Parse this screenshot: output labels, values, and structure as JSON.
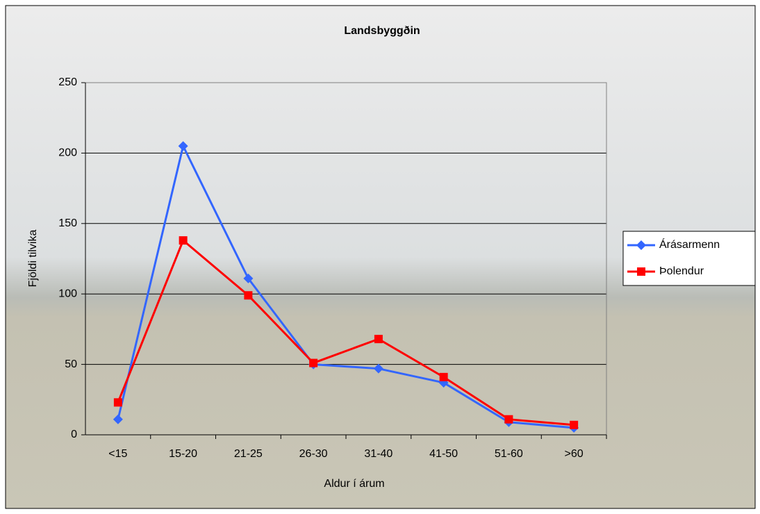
{
  "chart_data": {
    "type": "line",
    "title": "Landsbyggðin",
    "x_label": "Aldur í árum",
    "y_label": "Fjöldi tilvika",
    "categories": [
      "<15",
      "15-20",
      "21-25",
      "26-30",
      "31-40",
      "41-50",
      "51-60",
      ">60"
    ],
    "series": [
      {
        "name": "Árásarmenn",
        "color": "#3366ff",
        "marker": "diamond",
        "values": [
          11,
          205,
          111,
          50,
          47,
          37,
          9,
          5
        ]
      },
      {
        "name": "Þolendur",
        "color": "#ff0000",
        "marker": "square",
        "values": [
          23,
          138,
          99,
          51,
          68,
          41,
          11,
          7
        ]
      }
    ],
    "ylim": [
      0,
      250
    ],
    "yticks": [
      0,
      50,
      100,
      150,
      200,
      250
    ],
    "grid": true,
    "legend": "right"
  }
}
